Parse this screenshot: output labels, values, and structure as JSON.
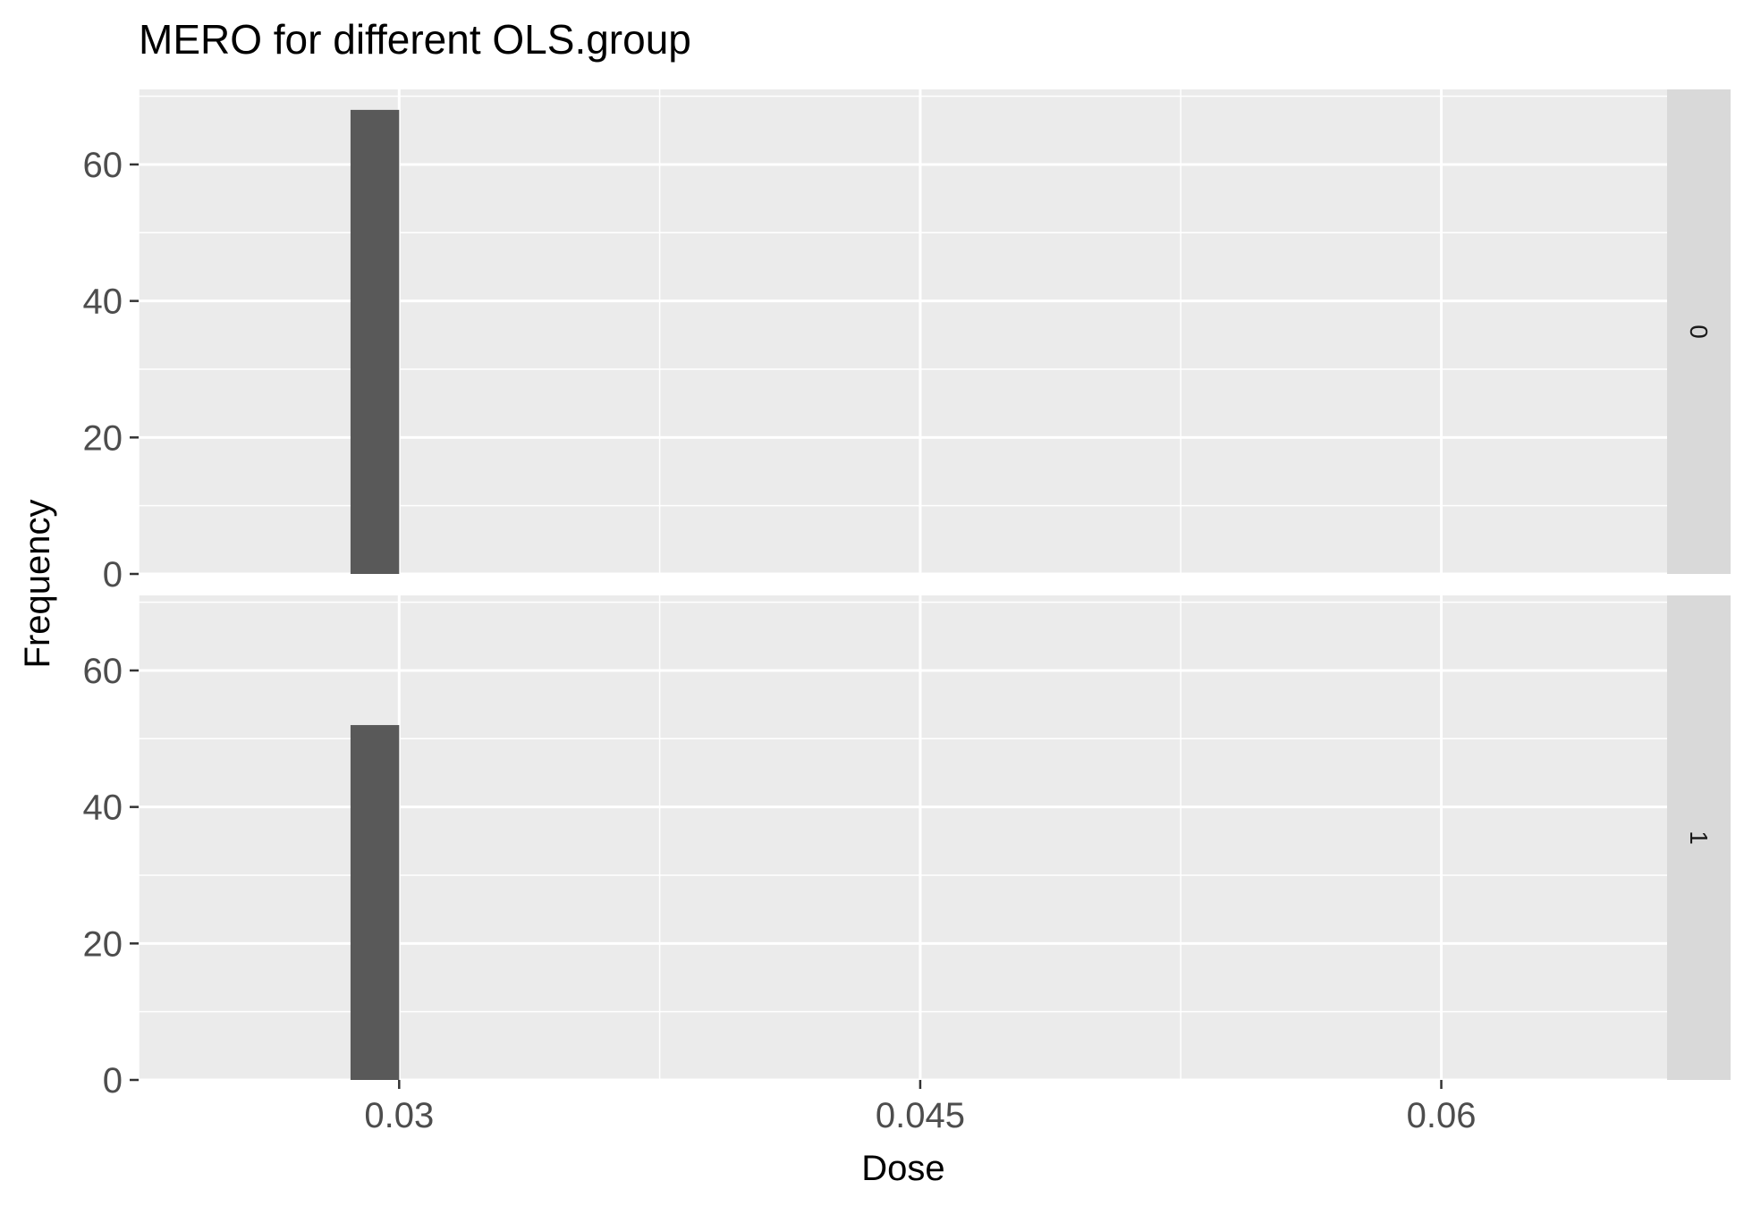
{
  "chart_data": {
    "type": "bar",
    "chart_kind": "faceted histogram",
    "title": "MERO for different OLS.group",
    "xlabel": "Dose",
    "ylabel": "Frequency",
    "xlim": [
      0.0225,
      0.0665
    ],
    "ylim": [
      0,
      71
    ],
    "x_ticks": [
      0.03,
      0.045,
      0.06
    ],
    "x_tick_labels": [
      "0.03",
      "0.045",
      "0.06"
    ],
    "y_ticks": [
      0,
      20,
      40,
      60
    ],
    "y_tick_labels": [
      "0",
      "20",
      "40",
      "60"
    ],
    "grid": true,
    "colors": {
      "panel_background": "#ebebeb",
      "strip_background": "#d9d9d9",
      "grid_line": "#ffffff",
      "bar_fill": "#595959"
    },
    "facets": [
      {
        "strip_label": "0",
        "bars": [
          {
            "x_start": 0.0286,
            "x_end": 0.03,
            "count": 68
          }
        ]
      },
      {
        "strip_label": "1",
        "bars": [
          {
            "x_start": 0.0286,
            "x_end": 0.03,
            "count": 52
          }
        ]
      }
    ]
  }
}
